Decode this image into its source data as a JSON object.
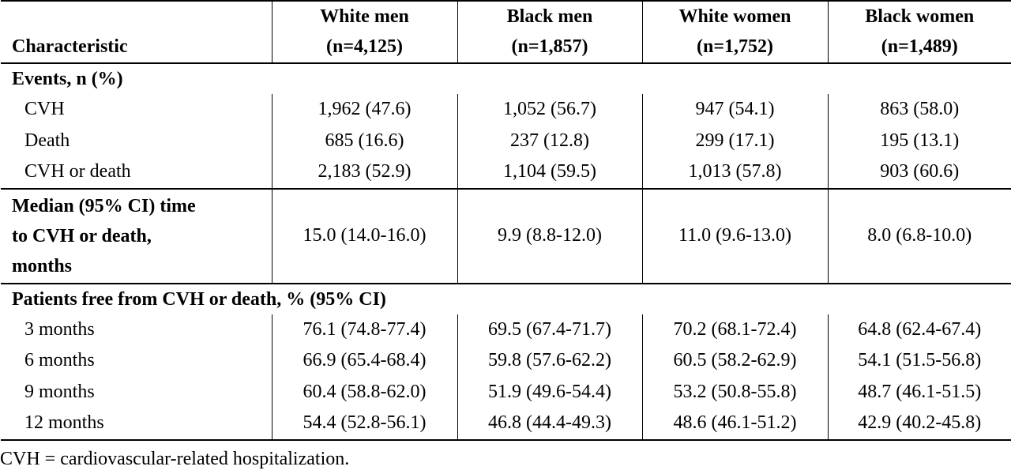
{
  "table": {
    "columns": [
      {
        "line1": "",
        "line2": "Characteristic"
      },
      {
        "line1": "White men",
        "line2": "(n=4,125)"
      },
      {
        "line1": "Black men",
        "line2": "(n=1,857)"
      },
      {
        "line1": "White women",
        "line2": "(n=1,752)"
      },
      {
        "line1": "Black women",
        "line2": "(n=1,489)"
      }
    ],
    "events": {
      "title": "Events, n (%)",
      "rows": [
        {
          "label": "CVH",
          "values": [
            "1,962 (47.6)",
            "1,052 (56.7)",
            "947 (54.1)",
            "863 (58.0)"
          ]
        },
        {
          "label": "Death",
          "values": [
            "685 (16.6)",
            "237 (12.8)",
            "299 (17.1)",
            "195 (13.1)"
          ]
        },
        {
          "label": "CVH or death",
          "values": [
            "2,183 (52.9)",
            "1,104 (59.5)",
            "1,013 (57.8)",
            "903 (60.6)"
          ]
        }
      ]
    },
    "median": {
      "title_line1": "Median (95% CI) time",
      "title_line2": "to CVH or death,",
      "title_line3": "months",
      "values": [
        "15.0 (14.0-16.0)",
        "9.9 (8.8-12.0)",
        "11.0 (9.6-13.0)",
        "8.0 (6.8-10.0)"
      ]
    },
    "free": {
      "title": "Patients free from CVH or death, % (95% CI)",
      "rows": [
        {
          "label": "3 months",
          "values": [
            "76.1 (74.8-77.4)",
            "69.5 (67.4-71.7)",
            "70.2 (68.1-72.4)",
            "64.8 (62.4-67.4)"
          ]
        },
        {
          "label": "6 months",
          "values": [
            "66.9 (65.4-68.4)",
            "59.8 (57.6-62.2)",
            "60.5 (58.2-62.9)",
            "54.1 (51.5-56.8)"
          ]
        },
        {
          "label": "9 months",
          "values": [
            "60.4 (58.8-62.0)",
            "51.9 (49.6-54.4)",
            "53.2 (50.8-55.8)",
            "48.7 (46.1-51.5)"
          ]
        },
        {
          "label": "12 months",
          "values": [
            "54.4 (52.8-56.1)",
            "46.8 (44.4-49.3)",
            "48.6 (46.1-51.2)",
            "42.9 (40.2-45.8)"
          ]
        }
      ]
    },
    "footnote": "CVH = cardiovascular-related hospitalization."
  }
}
